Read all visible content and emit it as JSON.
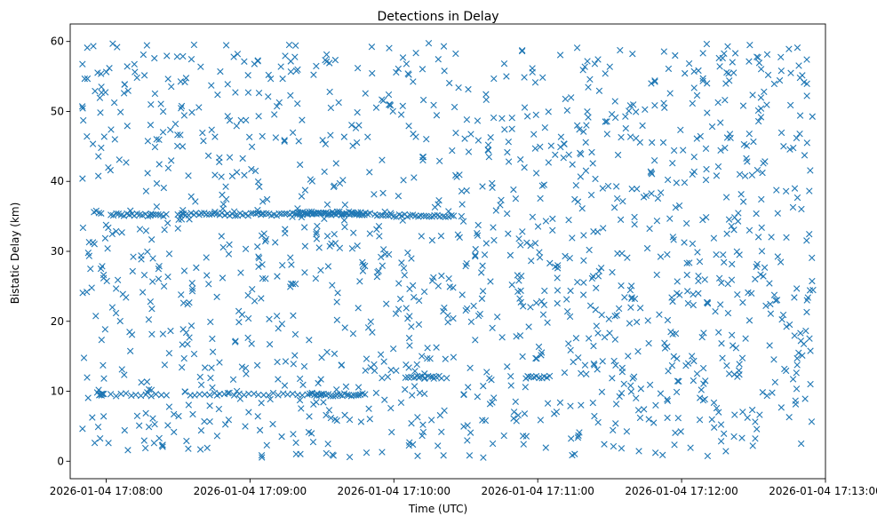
{
  "chart_data": {
    "type": "scatter",
    "title": "Detections in Delay",
    "xlabel": "Time (UTC)",
    "ylabel": "Bistatic Delay (km)",
    "x_type": "datetime",
    "xlim": [
      "2026-01-04 17:07:45",
      "2026-01-04 17:13:00"
    ],
    "ylim": [
      -2.5,
      62.5
    ],
    "x_ticks": [
      "2026-01-04 17:08:00",
      "2026-01-04 17:09:00",
      "2026-01-04 17:10:00",
      "2026-01-04 17:11:00",
      "2026-01-04 17:12:00",
      "2026-01-04 17:13:00"
    ],
    "y_ticks": [
      0,
      10,
      20,
      30,
      40,
      50,
      60
    ],
    "marker": "x",
    "color": "#1f77b4",
    "grid": false,
    "legend": "none",
    "x_range_observed": [
      "2026-01-04 17:07:50",
      "2026-01-04 17:12:55"
    ],
    "y_range_observed": [
      0.5,
      59.8
    ],
    "n_points_random": 1400,
    "random_seed": 20260104,
    "streaks": [
      {
        "x_start": "2026-01-04 17:08:02",
        "x_end": "2026-01-04 17:08:25",
        "y": 35.2,
        "n": 22
      },
      {
        "x_start": "2026-01-04 17:08:30",
        "x_end": "2026-01-04 17:09:50",
        "y": 35.3,
        "n": 75
      },
      {
        "x_start": "2026-01-04 17:09:20",
        "x_end": "2026-01-04 17:09:48",
        "y": 35.5,
        "n": 30
      },
      {
        "x_start": "2026-01-04 17:09:52",
        "x_end": "2026-01-04 17:10:25",
        "y": 35.1,
        "n": 30
      },
      {
        "x_start": "2026-01-04 17:08:02",
        "x_end": "2026-01-04 17:08:25",
        "y": 9.5,
        "n": 12
      },
      {
        "x_start": "2026-01-04 17:08:35",
        "x_end": "2026-01-04 17:09:30",
        "y": 9.6,
        "n": 28
      },
      {
        "x_start": "2026-01-04 17:09:25",
        "x_end": "2026-01-04 17:09:48",
        "y": 9.5,
        "n": 25
      },
      {
        "x_start": "2026-01-04 17:10:05",
        "x_end": "2026-01-04 17:10:20",
        "y": 12.0,
        "n": 14
      },
      {
        "x_start": "2026-01-04 17:10:55",
        "x_end": "2026-01-04 17:11:05",
        "y": 12.0,
        "n": 10
      },
      {
        "x_start": "2026-01-04 17:07:55",
        "x_end": "2026-01-04 17:07:58",
        "y": 35.6,
        "n": 4
      },
      {
        "x_start": "2026-01-04 17:07:57",
        "x_end": "2026-01-04 17:07:59",
        "y": 9.6,
        "n": 5
      }
    ]
  }
}
